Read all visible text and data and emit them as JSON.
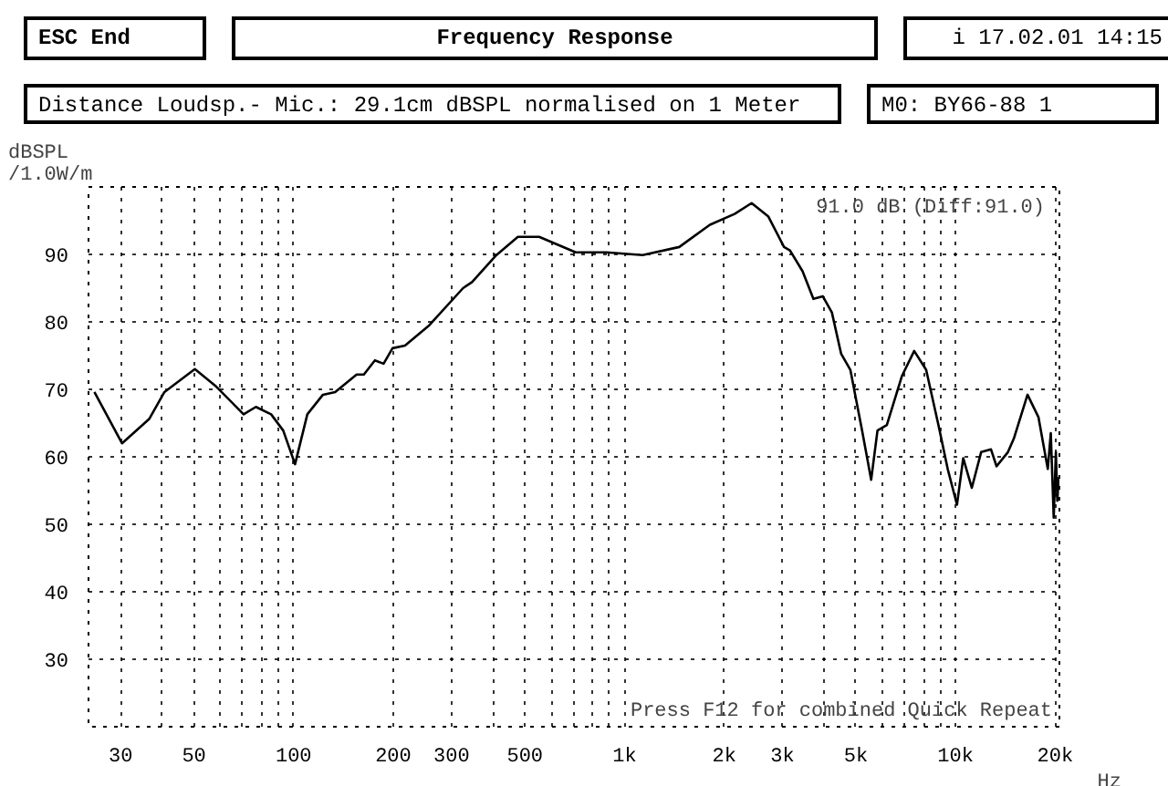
{
  "chart_data": {
    "type": "line",
    "title": "Frequency Response",
    "subtitle": "Distance Loudsp.- Mic.: 29.1cm dBSPL normalised on 1 Meter",
    "ylabel": "dBSPL\n/1.0W/m",
    "annotations": [
      "ESC End",
      "i 17.02.01 14:15",
      "M0: BY66-88 1",
      "91.0 dB (Diff:91.0)",
      "Press F12 for combined Quick Repeat"
    ],
    "xlabel": "Hz",
    "log": "x",
    "grid": true,
    "marker": "none",
    "line_style": "solid",
    "xlim": [
      24,
      20600
    ],
    "ylim": [
      20,
      100
    ],
    "xticks": [
      30,
      {
        "value": 40,
        "label": null
      },
      50,
      {
        "value": 60,
        "label": null
      },
      {
        "value": 70,
        "label": null
      },
      {
        "value": 80,
        "label": null
      },
      {
        "value": 90,
        "label": null
      },
      100,
      200,
      300,
      {
        "value": 400,
        "label": null
      },
      500,
      {
        "value": 600,
        "label": null
      },
      {
        "value": 700,
        "label": null
      },
      {
        "value": 800,
        "label": null
      },
      {
        "value": 900,
        "label": null
      },
      {
        "value": 1000,
        "label": "1k"
      },
      {
        "value": 2000,
        "label": "2k"
      },
      {
        "value": 3000,
        "label": "3k"
      },
      {
        "value": 4000,
        "label": null
      },
      {
        "value": 5000,
        "label": "5k"
      },
      {
        "value": 6000,
        "label": null
      },
      {
        "value": 7000,
        "label": null
      },
      {
        "value": 8000,
        "label": null
      },
      {
        "value": 9000,
        "label": null
      },
      {
        "value": 10000,
        "label": "10k"
      },
      {
        "value": 20000,
        "label": "20k"
      }
    ],
    "yticks": [
      30,
      40,
      50,
      60,
      70,
      80,
      90
    ],
    "x": [
      25,
      30.3,
      36.6,
      40.7,
      50.3,
      58.4,
      70.6,
      76.9,
      85.5,
      93,
      101,
      110,
      122.6,
      133.5,
      155,
      163,
      176,
      187,
      199,
      217,
      257,
      325,
      346,
      410,
      476,
      552,
      712,
      880,
      1134,
      1463,
      1811,
      2150,
      2420,
      2720,
      3032,
      3160,
      3450,
      3720,
      3970,
      4230,
      4510,
      4810,
      5220,
      5560,
      5810,
      6200,
      6890,
      7500,
      8150,
      8880,
      9470,
      10100,
      10550,
      11200,
      11950,
      12800,
      13300,
      14400,
      15000,
      16500,
      17800,
      19000,
      19400,
      19800,
      20100,
      20300,
      20500
    ],
    "series": [
      {
        "color": "#000000",
        "values": [
          69.6,
          62,
          65.6,
          69.6,
          73,
          70.4,
          66.3,
          67.4,
          66.3,
          63.9,
          58.9,
          66.3,
          69.2,
          69.6,
          72.2,
          72.2,
          74.3,
          73.8,
          76.1,
          76.5,
          79.5,
          85,
          85.9,
          89.9,
          92.6,
          92.6,
          90.3,
          90.3,
          89.9,
          91.1,
          94.4,
          96,
          97.6,
          95.6,
          91.1,
          90.6,
          87.5,
          83.4,
          83.8,
          81.4,
          75.3,
          72.9,
          63.9,
          56.6,
          63.9,
          64.7,
          72,
          75.7,
          72.9,
          64.7,
          58.2,
          52.9,
          59.8,
          55.4,
          60.7,
          61.1,
          58.6,
          60.7,
          62.7,
          69.2,
          65.9,
          58.2,
          63.5,
          51,
          60.7,
          53.5,
          57
        ]
      }
    ]
  }
}
